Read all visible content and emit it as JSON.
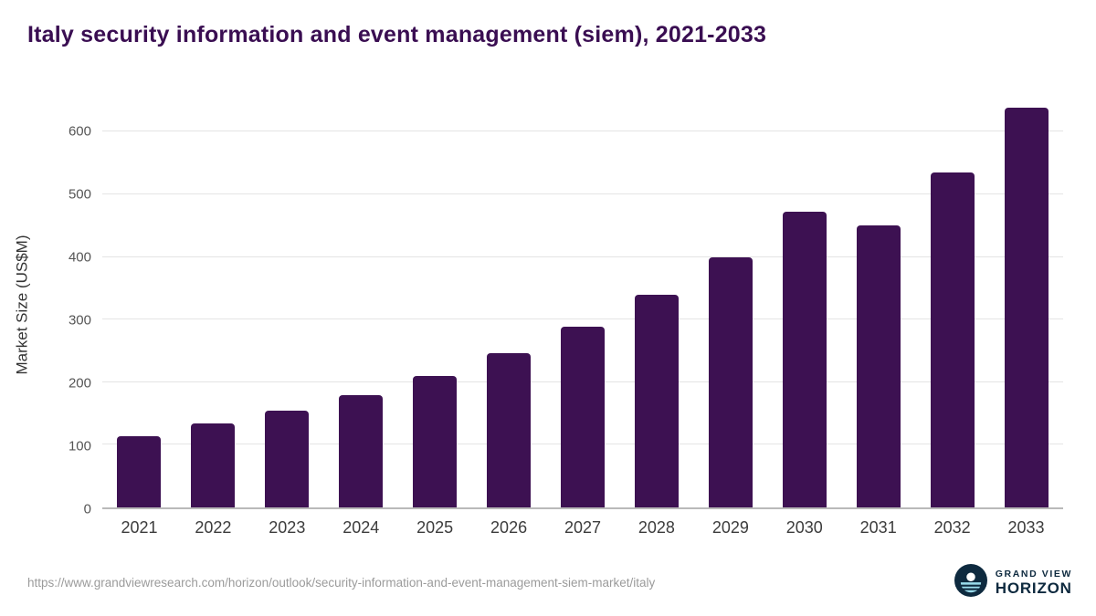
{
  "chart_data": {
    "type": "bar",
    "title": "Italy security information and event management (siem), 2021-2033",
    "categories": [
      "2021",
      "2022",
      "2023",
      "2024",
      "2025",
      "2026",
      "2027",
      "2028",
      "2029",
      "2030",
      "2031",
      "2032",
      "2033"
    ],
    "values": [
      114,
      134,
      155,
      180,
      210,
      246,
      288,
      340,
      399,
      472,
      451,
      535,
      638
    ],
    "xlabel": "",
    "ylabel": "Market Size (US$M)",
    "yticks": [
      0,
      100,
      200,
      300,
      400,
      500,
      600
    ],
    "ylim": [
      0,
      650
    ],
    "grid": true,
    "legend": "none",
    "bar_color": "#3d1152"
  },
  "footer": {
    "url": "https://www.grandviewresearch.com/horizon/outlook/security-information-and-event-management-siem-market/italy",
    "logo": {
      "line1": "GRAND VIEW",
      "line2": "HORIZON"
    }
  },
  "colors": {
    "title": "#3a0e52",
    "bar": "#3d1152",
    "gridline": "#e4e4e4",
    "axis": "#b9b9b9",
    "logo_navy": "#0e2a3f",
    "logo_cyan": "#9adcec"
  }
}
